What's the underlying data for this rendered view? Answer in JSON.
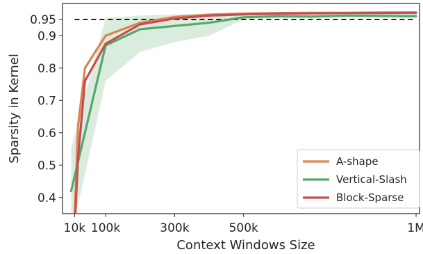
{
  "chart_data": {
    "type": "line",
    "xlabel": "Context Windows Size",
    "ylabel": "Sparsity in Kernel",
    "x_ticks": [
      10000,
      100000,
      300000,
      500000,
      1000000
    ],
    "x_tick_labels": [
      "10k",
      "100k",
      "300k",
      "500k",
      "1M"
    ],
    "y_ticks": [
      0.4,
      0.5,
      0.6,
      0.7,
      0.8,
      0.9,
      0.95
    ],
    "y_tick_labels": [
      "0.4",
      "0.5",
      "0.6",
      "0.7",
      "0.8",
      "0.9",
      "0.95"
    ],
    "xlim": [
      -25000,
      1010000
    ],
    "ylim": [
      0.35,
      0.9995
    ],
    "reference_line": {
      "y": 0.95,
      "style": "dashed",
      "color": "#000000"
    },
    "legend_position": "lower-right",
    "series": [
      {
        "name": "A-shape",
        "color": "#dd8452",
        "x": [
          10000,
          20000,
          40000,
          100000,
          200000,
          300000,
          400000,
          500000,
          600000,
          700000,
          800000,
          900000,
          1000000
        ],
        "y": [
          0.33,
          0.62,
          0.8,
          0.9,
          0.94,
          0.958,
          0.965,
          0.968,
          0.97,
          0.971,
          0.971,
          0.972,
          0.972
        ]
      },
      {
        "name": "Vertical-Slash",
        "color": "#55a868",
        "x": [
          0,
          100000,
          200000,
          300000,
          400000,
          500000,
          600000,
          700000,
          800000,
          900000,
          1000000
        ],
        "y": [
          0.42,
          0.87,
          0.92,
          0.93,
          0.94,
          0.957,
          0.96,
          0.959,
          0.962,
          0.961,
          0.96
        ],
        "band_lower": [
          0.28,
          0.76,
          0.85,
          0.88,
          0.9,
          0.95,
          0.955,
          0.953,
          0.957,
          0.956,
          0.955
        ],
        "band_upper": [
          0.55,
          0.955,
          0.962,
          0.965,
          0.967,
          0.968,
          0.969,
          0.969,
          0.97,
          0.97,
          0.97
        ]
      },
      {
        "name": "Block-Sparse",
        "color": "#c44e52",
        "x": [
          10000,
          20000,
          40000,
          100000,
          200000,
          300000,
          400000,
          500000,
          600000,
          700000,
          800000,
          900000,
          1000000
        ],
        "y": [
          0.3,
          0.52,
          0.76,
          0.875,
          0.935,
          0.953,
          0.962,
          0.966,
          0.968,
          0.969,
          0.97,
          0.97,
          0.971
        ]
      }
    ]
  }
}
